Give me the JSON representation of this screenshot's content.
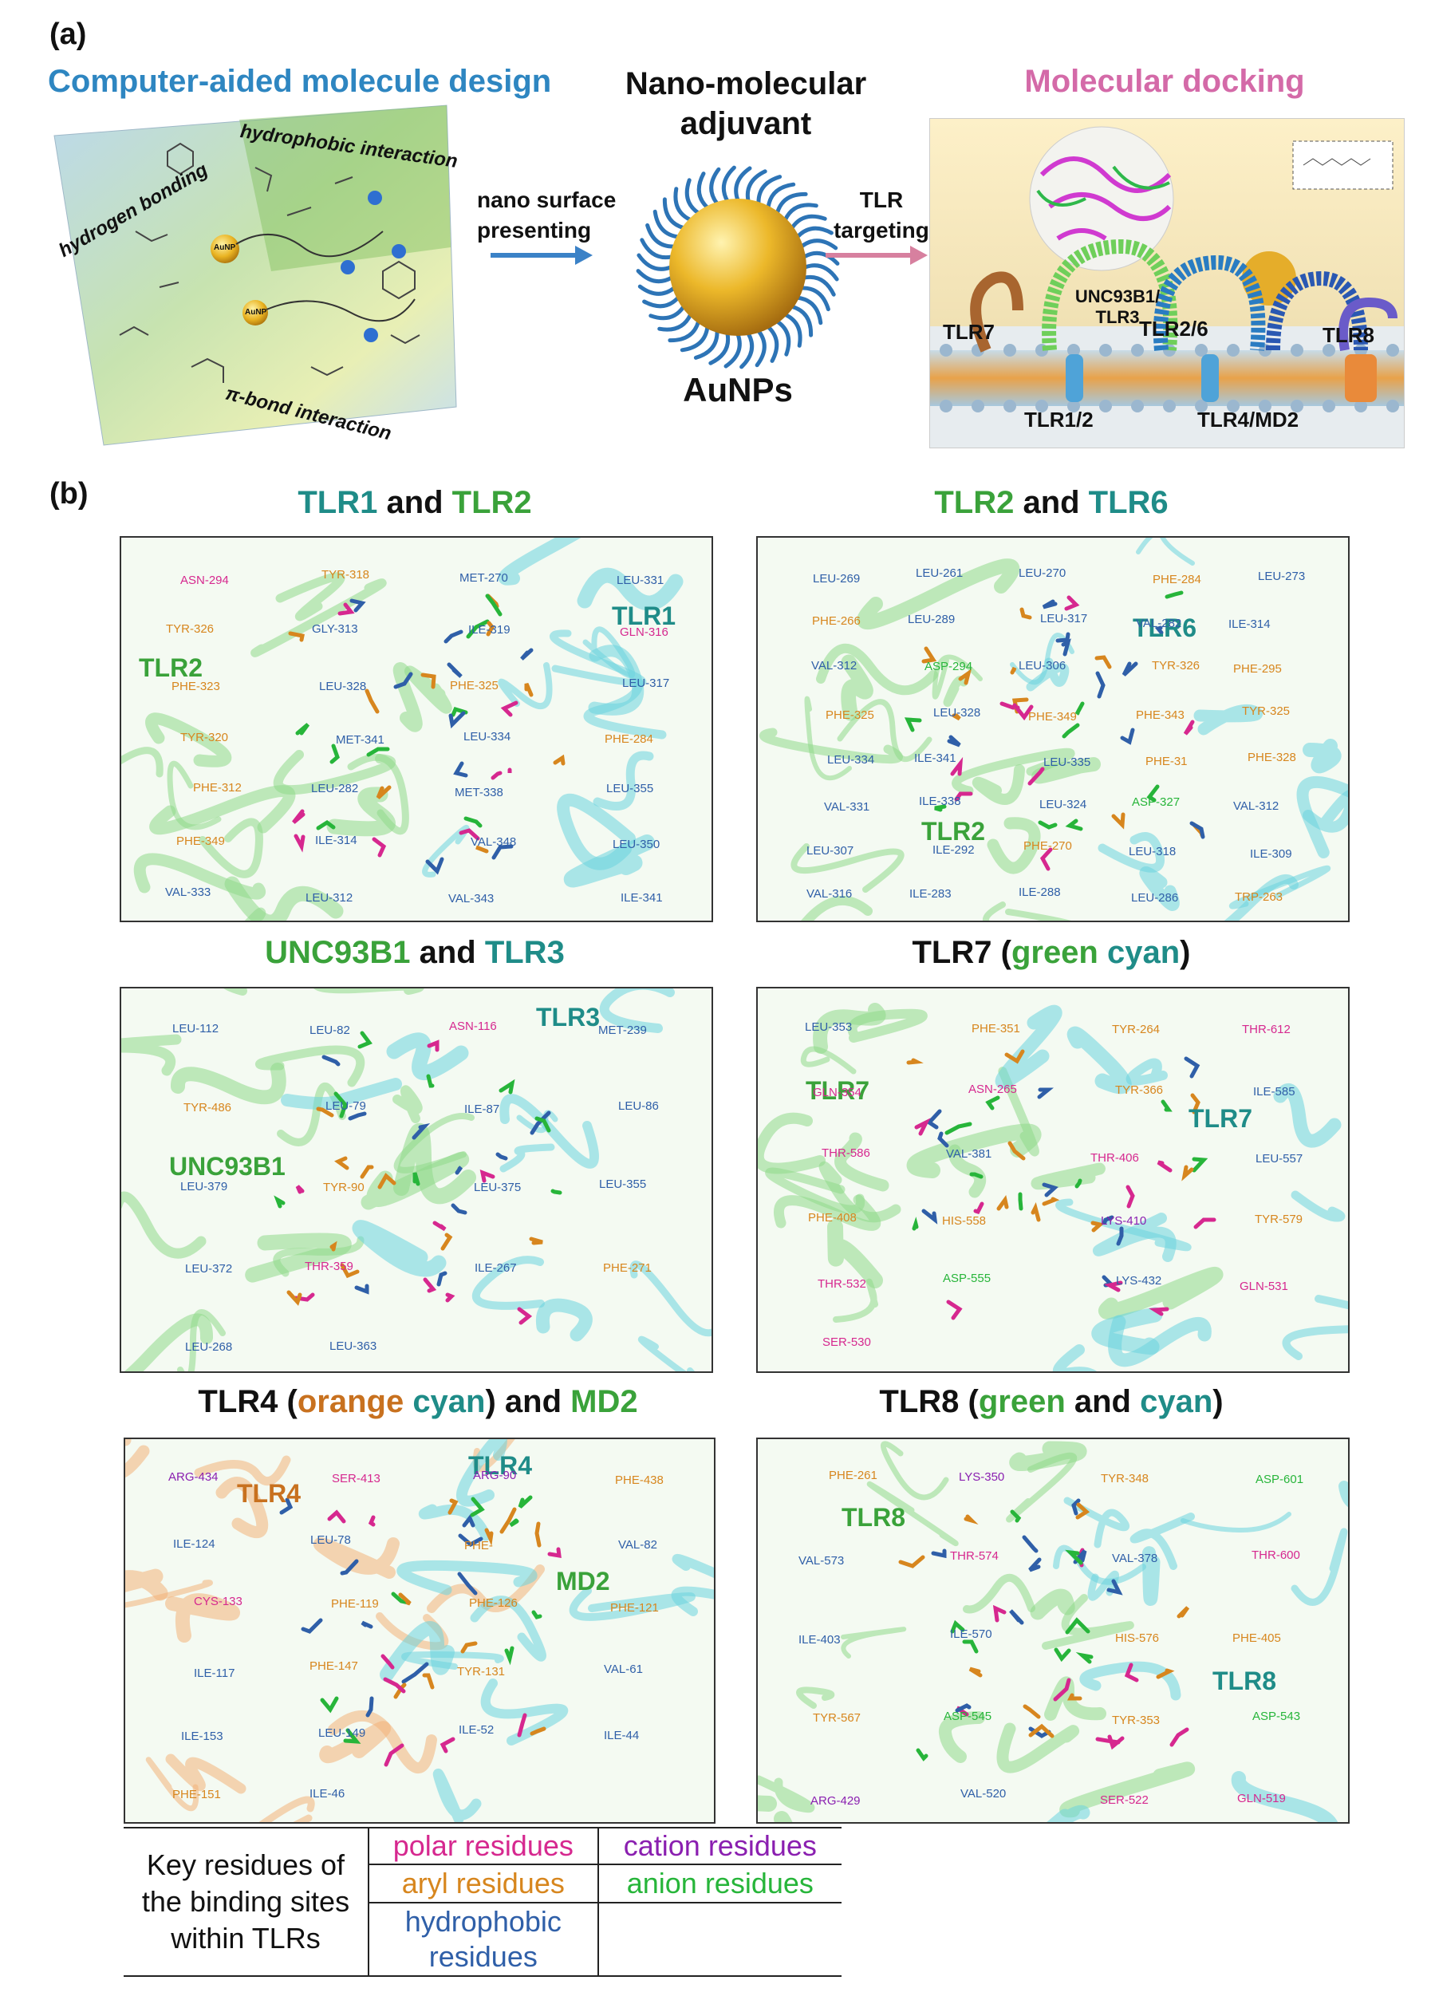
{
  "part_a": {
    "label": "(a)",
    "left_title": "Computer-aided molecule design",
    "left_terms": [
      "hydrogen bonding",
      "hydrophobic interaction",
      "π-bond interaction"
    ],
    "np_label": "AuNP",
    "arrow1_label": "nano surface presenting",
    "center_title": "Nano-molecular adjuvant",
    "center_label": "AuNPs",
    "arrow2_label": "TLR targeting",
    "right_title": "Molecular docking",
    "receptors": [
      "TLR7",
      "UNC93B1/ TLR3",
      "TLR2/6",
      "TLR8",
      "TLR1/2",
      "TLR4/MD2"
    ]
  },
  "part_b": {
    "label": "(b)",
    "panels": [
      {
        "title": [
          [
            "TLR1",
            "teal"
          ],
          [
            " and ",
            "black"
          ],
          [
            "TLR2",
            "green"
          ]
        ],
        "big_labels": [
          [
            "TLR2",
            "green"
          ],
          [
            "TLR1",
            "teal"
          ]
        ],
        "residues": [
          [
            "ASN-294",
            "polar"
          ],
          [
            "TYR-318",
            "aryl"
          ],
          [
            "MET-270",
            "hyd"
          ],
          [
            "LEU-331",
            "hyd"
          ],
          [
            "TYR-326",
            "aryl"
          ],
          [
            "GLY-313",
            "hyd"
          ],
          [
            "ILE-319",
            "hyd"
          ],
          [
            "GLN-316",
            "polar"
          ],
          [
            "PHE-323",
            "aryl"
          ],
          [
            "LEU-328",
            "hyd"
          ],
          [
            "PHE-325",
            "aryl"
          ],
          [
            "LEU-317",
            "hyd"
          ],
          [
            "TYR-320",
            "aryl"
          ],
          [
            "MET-341",
            "hyd"
          ],
          [
            "LEU-334",
            "hyd"
          ],
          [
            "PHE-284",
            "aryl"
          ],
          [
            "PHE-312",
            "aryl"
          ],
          [
            "LEU-282",
            "hyd"
          ],
          [
            "MET-338",
            "hyd"
          ],
          [
            "LEU-355",
            "hyd"
          ],
          [
            "PHE-349",
            "aryl"
          ],
          [
            "ILE-314",
            "hyd"
          ],
          [
            "VAL-348",
            "hyd"
          ],
          [
            "LEU-350",
            "hyd"
          ],
          [
            "VAL-333",
            "hyd"
          ],
          [
            "LEU-312",
            "hyd"
          ],
          [
            "VAL-343",
            "hyd"
          ],
          [
            "ILE-341",
            "hyd"
          ]
        ]
      },
      {
        "title": [
          [
            "TLR2",
            "green"
          ],
          [
            " and ",
            "black"
          ],
          [
            "TLR6",
            "teal"
          ]
        ],
        "big_labels": [
          [
            "TLR6",
            "teal"
          ],
          [
            "TLR2",
            "green"
          ]
        ],
        "residues": [
          [
            "LEU-269",
            "hyd"
          ],
          [
            "LEU-261",
            "hyd"
          ],
          [
            "LEU-270",
            "hyd"
          ],
          [
            "PHE-284",
            "aryl"
          ],
          [
            "LEU-273",
            "hyd"
          ],
          [
            "PHE-266",
            "aryl"
          ],
          [
            "LEU-289",
            "hyd"
          ],
          [
            "LEU-317",
            "hyd"
          ],
          [
            "VAL-282",
            "hyd"
          ],
          [
            "ILE-314",
            "hyd"
          ],
          [
            "VAL-312",
            "hyd"
          ],
          [
            "ASP-294",
            "an"
          ],
          [
            "LEU-306",
            "hyd"
          ],
          [
            "TYR-326",
            "aryl"
          ],
          [
            "PHE-295",
            "aryl"
          ],
          [
            "PHE-325",
            "aryl"
          ],
          [
            "LEU-328",
            "hyd"
          ],
          [
            "PHE-349",
            "aryl"
          ],
          [
            "PHE-343",
            "aryl"
          ],
          [
            "TYR-325",
            "aryl"
          ],
          [
            "LEU-334",
            "hyd"
          ],
          [
            "ILE-341",
            "hyd"
          ],
          [
            "LEU-335",
            "hyd"
          ],
          [
            "PHE-31",
            "aryl"
          ],
          [
            "PHE-328",
            "aryl"
          ],
          [
            "VAL-331",
            "hyd"
          ],
          [
            "ILE-338",
            "hyd"
          ],
          [
            "LEU-324",
            "hyd"
          ],
          [
            "ASP-327",
            "an"
          ],
          [
            "VAL-312",
            "hyd"
          ],
          [
            "LEU-307",
            "hyd"
          ],
          [
            "ILE-292",
            "hyd"
          ],
          [
            "PHE-270",
            "aryl"
          ],
          [
            "LEU-318",
            "hyd"
          ],
          [
            "ILE-309",
            "hyd"
          ],
          [
            "VAL-316",
            "hyd"
          ],
          [
            "ILE-283",
            "hyd"
          ],
          [
            "ILE-288",
            "hyd"
          ],
          [
            "LEU-286",
            "hyd"
          ],
          [
            "TRP-263",
            "aryl"
          ]
        ]
      },
      {
        "title": [
          [
            "UNC93B1",
            "green"
          ],
          [
            " and ",
            "black"
          ],
          [
            "TLR3",
            "teal"
          ]
        ],
        "big_labels": [
          [
            "TLR3",
            "teal"
          ],
          [
            "UNC93B1",
            "green"
          ]
        ],
        "residues": [
          [
            "LEU-112",
            "hyd"
          ],
          [
            "LEU-82",
            "hyd"
          ],
          [
            "ASN-116",
            "polar"
          ],
          [
            "MET-239",
            "hyd"
          ],
          [
            "TYR-486",
            "aryl"
          ],
          [
            "LEU-79",
            "hyd"
          ],
          [
            "ILE-87",
            "hyd"
          ],
          [
            "LEU-86",
            "hyd"
          ],
          [
            "LEU-379",
            "hyd"
          ],
          [
            "TYR-90",
            "aryl"
          ],
          [
            "LEU-375",
            "hyd"
          ],
          [
            "LEU-355",
            "hyd"
          ],
          [
            "LEU-372",
            "hyd"
          ],
          [
            "THR-359",
            "polar"
          ],
          [
            "ILE-267",
            "hyd"
          ],
          [
            "PHE-271",
            "aryl"
          ],
          [
            "LEU-268",
            "hyd"
          ],
          [
            "LEU-363",
            "hyd"
          ]
        ]
      },
      {
        "title": [
          [
            "TLR7 (",
            "black"
          ],
          [
            "green",
            "green"
          ],
          [
            " ",
            "black"
          ],
          [
            "cyan",
            "teal"
          ],
          [
            ")",
            "black"
          ]
        ],
        "big_labels": [
          [
            "TLR7",
            "green"
          ],
          [
            "TLR7",
            "teal"
          ]
        ],
        "residues": [
          [
            "LEU-353",
            "hyd"
          ],
          [
            "PHE-351",
            "aryl"
          ],
          [
            "TYR-264",
            "aryl"
          ],
          [
            "THR-612",
            "polar"
          ],
          [
            "GLN-354",
            "polar"
          ],
          [
            "ASN-265",
            "polar"
          ],
          [
            "TYR-366",
            "aryl"
          ],
          [
            "ILE-585",
            "hyd"
          ],
          [
            "THR-586",
            "polar"
          ],
          [
            "VAL-381",
            "hyd"
          ],
          [
            "THR-406",
            "polar"
          ],
          [
            "LEU-557",
            "hyd"
          ],
          [
            "PHE-408",
            "aryl"
          ],
          [
            "HIS-558",
            "aryl"
          ],
          [
            "LYS-410",
            "cat"
          ],
          [
            "TYR-579",
            "aryl"
          ],
          [
            "THR-532",
            "polar"
          ],
          [
            "ASP-555",
            "an"
          ],
          [
            "LYS-432",
            "hyd"
          ],
          [
            "GLN-531",
            "polar"
          ],
          [
            "SER-530",
            "polar"
          ]
        ]
      },
      {
        "title": [
          [
            "TLR4 (",
            "black"
          ],
          [
            "orange",
            "orange"
          ],
          [
            " ",
            "black"
          ],
          [
            "cyan",
            "teal"
          ],
          [
            ") and ",
            "black"
          ],
          [
            "MD2",
            "green"
          ]
        ],
        "big_labels": [
          [
            "TLR4",
            "orange"
          ],
          [
            "TLR4",
            "teal"
          ],
          [
            "MD2",
            "green"
          ]
        ],
        "residues": [
          [
            "ARG-434",
            "cat"
          ],
          [
            "SER-413",
            "polar"
          ],
          [
            "ARG-90",
            "cat"
          ],
          [
            "PHE-438",
            "aryl"
          ],
          [
            "ILE-124",
            "hyd"
          ],
          [
            "LEU-78",
            "hyd"
          ],
          [
            "PHE-",
            "aryl"
          ],
          [
            "VAL-82",
            "hyd"
          ],
          [
            "CYS-133",
            "polar"
          ],
          [
            "PHE-119",
            "aryl"
          ],
          [
            "PHE-126",
            "aryl"
          ],
          [
            "PHE-121",
            "aryl"
          ],
          [
            "ILE-117",
            "hyd"
          ],
          [
            "PHE-147",
            "aryl"
          ],
          [
            "TYR-131",
            "aryl"
          ],
          [
            "VAL-61",
            "hyd"
          ],
          [
            "ILE-153",
            "hyd"
          ],
          [
            "LEU-149",
            "hyd"
          ],
          [
            "ILE-52",
            "hyd"
          ],
          [
            "ILE-44",
            "hyd"
          ],
          [
            "PHE-151",
            "aryl"
          ],
          [
            "ILE-46",
            "hyd"
          ]
        ]
      },
      {
        "title": [
          [
            "TLR8 (",
            "black"
          ],
          [
            "green",
            "green"
          ],
          [
            " and ",
            "black"
          ],
          [
            "cyan",
            "teal"
          ],
          [
            ")",
            "black"
          ]
        ],
        "big_labels": [
          [
            "TLR8",
            "green"
          ],
          [
            "TLR8",
            "teal"
          ]
        ],
        "residues": [
          [
            "PHE-261",
            "aryl"
          ],
          [
            "LYS-350",
            "cat"
          ],
          [
            "TYR-348",
            "aryl"
          ],
          [
            "ASP-601",
            "an"
          ],
          [
            "VAL-573",
            "hyd"
          ],
          [
            "THR-574",
            "polar"
          ],
          [
            "VAL-378",
            "hyd"
          ],
          [
            "THR-600",
            "polar"
          ],
          [
            "ILE-403",
            "hyd"
          ],
          [
            "ILE-570",
            "hyd"
          ],
          [
            "HIS-576",
            "aryl"
          ],
          [
            "PHE-405",
            "aryl"
          ],
          [
            "TYR-567",
            "aryl"
          ],
          [
            "ASP-545",
            "an"
          ],
          [
            "TYR-353",
            "aryl"
          ],
          [
            "ASP-543",
            "an"
          ],
          [
            "ARG-429",
            "cat"
          ],
          [
            "VAL-520",
            "hyd"
          ],
          [
            "SER-522",
            "polar"
          ],
          [
            "GLN-519",
            "polar"
          ]
        ]
      }
    ]
  },
  "legend": {
    "caption": [
      "Key residues of",
      "the binding sites",
      "within TLRs"
    ],
    "polar": "polar residues",
    "cation": "cation residues",
    "aryl": "aryl residues",
    "anion": "anion residues",
    "hydrophobic": [
      "hydrophobic",
      "residues"
    ]
  },
  "colors": {
    "polar": "#d6288f",
    "aryl": "#d7861e",
    "hyd": "#2f5fa8",
    "cat": "#8a1fb0",
    "an": "#27b53a",
    "green": "#3aa23a",
    "teal": "#1f8c88",
    "orange": "#c8711f",
    "black": "#111111",
    "ribbon_green": "#8fd98a",
    "ribbon_cyan": "#6cd3de",
    "ribbon_orange": "#f2b27a"
  }
}
